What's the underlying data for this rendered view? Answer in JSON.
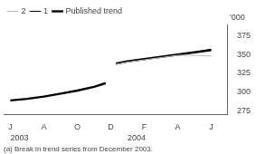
{
  "chart_data": {
    "type": "line",
    "x": [
      0,
      0.5,
      1,
      1.5,
      2,
      2.5,
      2.85,
      3.15,
      3.5,
      4,
      4.5,
      5,
      5.5,
      6
    ],
    "series": [
      {
        "name": "Published trend",
        "color": "#000000",
        "values": [
          289,
          291,
          294,
          298,
          302,
          307,
          312,
          338,
          341,
          344,
          347,
          350,
          353,
          356
        ]
      },
      {
        "name": "1",
        "color": "#000000",
        "values": [
          null,
          null,
          null,
          null,
          null,
          null,
          null,
          337,
          340,
          343,
          347,
          350,
          353,
          357
        ]
      },
      {
        "name": "2",
        "color": "#bbbbbb",
        "values": [
          null,
          null,
          null,
          null,
          null,
          null,
          null,
          337,
          340,
          343,
          346,
          349,
          349,
          348
        ]
      }
    ],
    "xlim": [
      -0.2,
      6.5
    ],
    "xticks": [
      {
        "value": 0,
        "label": "J"
      },
      {
        "value": 1,
        "label": "A"
      },
      {
        "value": 2,
        "label": "O"
      },
      {
        "value": 3,
        "label": "D"
      },
      {
        "value": 4,
        "label": "F"
      },
      {
        "value": 5,
        "label": "A"
      },
      {
        "value": 6,
        "label": "J"
      }
    ],
    "ylim": [
      270,
      390
    ],
    "yticks": [
      275,
      300,
      325,
      350,
      375
    ],
    "ylabel": "'000",
    "annotations": [
      {
        "text": "2003",
        "x": 0
      },
      {
        "text": "2004",
        "x": 3.5
      }
    ],
    "footnote": "(a) Break in trend series from December 2003.",
    "legend": "upper left",
    "grid": false
  }
}
